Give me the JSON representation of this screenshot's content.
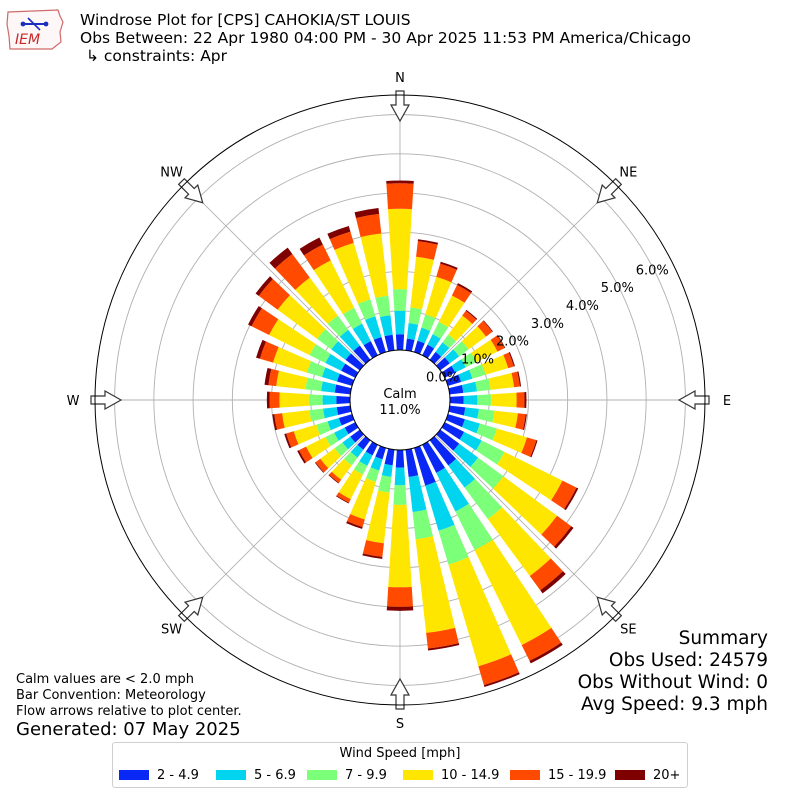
{
  "header": {
    "logo_text": "IEM",
    "title": "Windrose Plot for [CPS] CAHOKIA/ST LOUIS",
    "obs_between": "Obs Between: 22 Apr 1980 04:00 PM - 30 Apr 2025 11:53 PM America/Chicago",
    "constraints": "↳ constraints: Apr"
  },
  "summary": {
    "heading": "Summary",
    "obs_used": "Obs Used: 24579",
    "obs_without_wind": "Obs Without Wind: 0",
    "avg_speed": "Avg Speed: 9.3 mph"
  },
  "notes": {
    "calm_note": "Calm values are < 2.0 mph",
    "bar_convention": "Bar Convention: Meteorology",
    "flow_arrows": "Flow arrows relative to plot center.",
    "generated": "Generated: 07 May 2025"
  },
  "chart_data": {
    "type": "windrose",
    "calm_label": "Calm",
    "calm_value": "11.0%",
    "radial_labels": [
      "0.0%",
      "1.0%",
      "2.0%",
      "3.0%",
      "4.0%",
      "5.0%",
      "6.0%"
    ],
    "radial_ticks": [
      0,
      1,
      2,
      3,
      4,
      5,
      6
    ],
    "rmax": 6.5,
    "directions": [
      {
        "label": "N",
        "angle": 0
      },
      {
        "label": "NE",
        "angle": 45
      },
      {
        "label": "E",
        "angle": 90
      },
      {
        "label": "SE",
        "angle": 135
      },
      {
        "label": "S",
        "angle": 180
      },
      {
        "label": "SW",
        "angle": 225
      },
      {
        "label": "W",
        "angle": 270
      },
      {
        "label": "NW",
        "angle": 315
      }
    ],
    "legend_title": "Wind Speed [mph]",
    "bins": [
      {
        "label": "2 - 4.9",
        "color": "#0a28f5"
      },
      {
        "label": "5 - 6.9",
        "color": "#00d4ef"
      },
      {
        "label": "7 - 9.9",
        "color": "#7cff79"
      },
      {
        "label": "10 - 14.9",
        "color": "#ffe600"
      },
      {
        "label": "15 - 19.9",
        "color": "#ff4a00"
      },
      {
        "label": "20+",
        "color": "#7f0000"
      }
    ],
    "sectors": [
      {
        "dir": 0,
        "cum": [
          0.4,
          1.0,
          1.55,
          3.6,
          4.25,
          4.32
        ]
      },
      {
        "dir": 10,
        "cum": [
          0.3,
          0.7,
          1.1,
          2.4,
          2.8,
          2.85
        ]
      },
      {
        "dir": 20,
        "cum": [
          0.3,
          0.65,
          1.0,
          2.0,
          2.35,
          2.4
        ]
      },
      {
        "dir": 30,
        "cum": [
          0.3,
          0.6,
          0.95,
          1.7,
          2.0,
          2.05
        ]
      },
      {
        "dir": 40,
        "cum": [
          0.25,
          0.55,
          0.8,
          1.4,
          1.55,
          1.58
        ]
      },
      {
        "dir": 50,
        "cum": [
          0.3,
          0.6,
          0.9,
          1.45,
          1.65,
          1.67
        ]
      },
      {
        "dir": 60,
        "cum": [
          0.3,
          0.6,
          0.9,
          1.5,
          1.7,
          1.72
        ]
      },
      {
        "dir": 70,
        "cum": [
          0.35,
          0.65,
          1.0,
          1.6,
          1.75,
          1.78
        ]
      },
      {
        "dir": 80,
        "cum": [
          0.35,
          0.7,
          1.05,
          1.65,
          1.8,
          1.83
        ]
      },
      {
        "dir": 90,
        "cum": [
          0.35,
          0.7,
          1.05,
          1.7,
          1.9,
          1.95
        ]
      },
      {
        "dir": 100,
        "cum": [
          0.4,
          0.75,
          1.15,
          1.75,
          1.95,
          1.98
        ]
      },
      {
        "dir": 110,
        "cum": [
          0.45,
          0.85,
          1.3,
          2.1,
          2.35,
          2.38
        ]
      },
      {
        "dir": 120,
        "cum": [
          0.55,
          1.05,
          1.7,
          3.35,
          3.75,
          3.8
        ]
      },
      {
        "dir": 130,
        "cum": [
          0.6,
          1.2,
          2.0,
          3.7,
          4.15,
          4.22
        ]
      },
      {
        "dir": 140,
        "cum": [
          0.8,
          1.5,
          2.5,
          4.3,
          4.75,
          4.85
        ]
      },
      {
        "dir": 150,
        "cum": [
          0.8,
          1.9,
          3.0,
          5.7,
          6.15,
          6.22
        ]
      },
      {
        "dir": 160,
        "cum": [
          1.0,
          2.2,
          3.1,
          5.8,
          6.3,
          6.35
        ]
      },
      {
        "dir": 170,
        "cum": [
          0.7,
          1.6,
          2.3,
          4.7,
          5.1,
          5.15
        ]
      },
      {
        "dir": 180,
        "cum": [
          0.45,
          0.9,
          1.4,
          3.5,
          4.0,
          4.1
        ]
      },
      {
        "dir": 190,
        "cum": [
          0.4,
          0.7,
          1.1,
          2.4,
          2.75,
          2.8
        ]
      },
      {
        "dir": 200,
        "cum": [
          0.3,
          0.6,
          0.9,
          1.9,
          2.1,
          2.15
        ]
      },
      {
        "dir": 210,
        "cum": [
          0.3,
          0.6,
          0.85,
          1.55,
          1.65,
          1.67
        ]
      },
      {
        "dir": 220,
        "cum": [
          0.3,
          0.55,
          0.8,
          1.25,
          1.35,
          1.37
        ]
      },
      {
        "dir": 230,
        "cum": [
          0.3,
          0.55,
          0.8,
          1.25,
          1.4,
          1.42
        ]
      },
      {
        "dir": 240,
        "cum": [
          0.3,
          0.6,
          0.85,
          1.4,
          1.6,
          1.65
        ]
      },
      {
        "dir": 250,
        "cum": [
          0.35,
          0.65,
          0.95,
          1.55,
          1.75,
          1.8
        ]
      },
      {
        "dir": 260,
        "cum": [
          0.35,
          0.7,
          1.05,
          1.75,
          1.95,
          2.0
        ]
      },
      {
        "dir": 270,
        "cum": [
          0.35,
          0.7,
          1.05,
          1.8,
          2.05,
          2.12
        ]
      },
      {
        "dir": 280,
        "cum": [
          0.4,
          0.75,
          1.15,
          1.9,
          2.1,
          2.2
        ]
      },
      {
        "dir": 290,
        "cum": [
          0.4,
          0.8,
          1.2,
          2.1,
          2.45,
          2.55
        ]
      },
      {
        "dir": 300,
        "cum": [
          0.4,
          0.85,
          1.3,
          2.45,
          2.95,
          3.05
        ]
      },
      {
        "dir": 310,
        "cum": [
          0.45,
          0.9,
          1.35,
          2.6,
          3.2,
          3.3
        ]
      },
      {
        "dir": 320,
        "cum": [
          0.45,
          0.95,
          1.4,
          2.6,
          3.35,
          3.55
        ]
      },
      {
        "dir": 330,
        "cum": [
          0.4,
          0.9,
          1.35,
          2.7,
          3.15,
          3.35
        ]
      },
      {
        "dir": 340,
        "cum": [
          0.4,
          0.95,
          1.4,
          2.9,
          3.2,
          3.35
        ]
      },
      {
        "dir": 350,
        "cum": [
          0.4,
          0.9,
          1.4,
          3.0,
          3.5,
          3.65
        ]
      }
    ]
  }
}
